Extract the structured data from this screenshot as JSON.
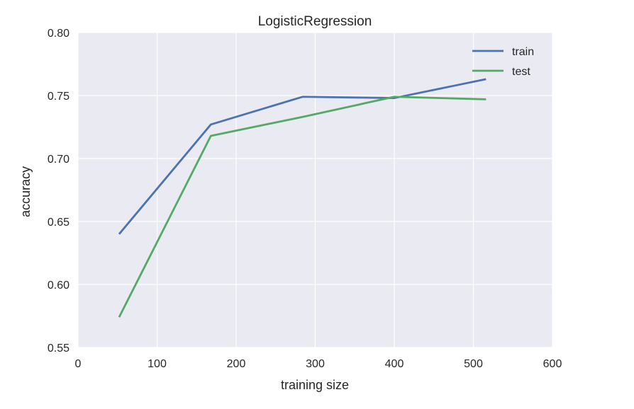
{
  "chart_data": {
    "type": "line",
    "title": "LogisticRegression",
    "xlabel": "training size",
    "ylabel": "accuracy",
    "xlim": [
      0,
      600
    ],
    "ylim": [
      0.55,
      0.8
    ],
    "xticks": [
      0,
      100,
      200,
      300,
      400,
      500,
      600
    ],
    "yticks": [
      0.55,
      0.6,
      0.65,
      0.7,
      0.75,
      0.8
    ],
    "xtick_labels": [
      "0",
      "100",
      "200",
      "300",
      "400",
      "500",
      "600"
    ],
    "ytick_labels": [
      "0.55",
      "0.60",
      "0.65",
      "0.70",
      "0.75",
      "0.80"
    ],
    "grid": true,
    "legend_position": "top-right",
    "x": [
      52,
      168,
      284,
      400,
      516
    ],
    "series": [
      {
        "name": "train",
        "color": "#4c72b0",
        "values": [
          0.64,
          0.727,
          0.749,
          0.748,
          0.763
        ]
      },
      {
        "name": "test",
        "color": "#55a868",
        "values": [
          0.574,
          0.718,
          0.733,
          0.749,
          0.747
        ]
      }
    ],
    "background_color": "#eaeaf2"
  }
}
